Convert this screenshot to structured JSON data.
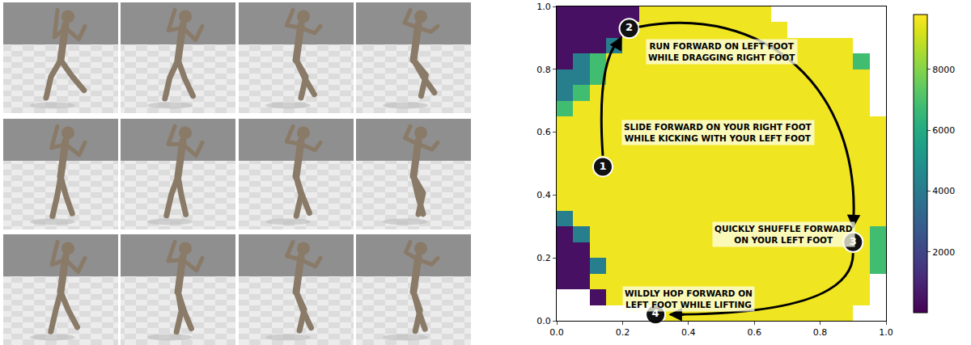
{
  "chart_data": {
    "type": "heatmap",
    "x": [
      0.025,
      0.075,
      0.125,
      0.175,
      0.225,
      0.275,
      0.325,
      0.375,
      0.425,
      0.475,
      0.525,
      0.575,
      0.625,
      0.675,
      0.725,
      0.775,
      0.825,
      0.875,
      0.925,
      0.975
    ],
    "y": [
      0.025,
      0.075,
      0.125,
      0.175,
      0.225,
      0.275,
      0.325,
      0.375,
      0.425,
      0.475,
      0.525,
      0.575,
      0.625,
      0.675,
      0.725,
      0.775,
      0.825,
      0.875,
      0.925,
      0.975
    ],
    "cells": [
      [
        null,
        null,
        null,
        null,
        null,
        null,
        9600,
        9600,
        9600,
        9600,
        9600,
        9600,
        9600,
        9600,
        9600,
        9600,
        9600,
        9600,
        null,
        null
      ],
      [
        null,
        null,
        400,
        9600,
        9600,
        9600,
        9600,
        9600,
        9600,
        9600,
        9600,
        9600,
        9600,
        9600,
        9600,
        9600,
        9600,
        9600,
        9600,
        null
      ],
      [
        400,
        400,
        9600,
        9600,
        9600,
        9600,
        9600,
        9600,
        9600,
        9600,
        9600,
        9600,
        9600,
        9600,
        9600,
        9600,
        9600,
        9600,
        9600,
        null
      ],
      [
        400,
        400,
        4200,
        9600,
        9600,
        9600,
        9600,
        9600,
        9600,
        9600,
        9600,
        9600,
        9600,
        9600,
        9600,
        9600,
        9600,
        9600,
        9600,
        6800
      ],
      [
        400,
        400,
        9600,
        9600,
        9600,
        9600,
        9600,
        9600,
        9600,
        9600,
        9600,
        9600,
        9600,
        9600,
        9600,
        9600,
        9600,
        9600,
        9600,
        6800
      ],
      [
        400,
        4200,
        9600,
        9600,
        9600,
        9600,
        9600,
        9600,
        9600,
        9600,
        9600,
        9600,
        9600,
        9600,
        9600,
        9600,
        9600,
        9600,
        9600,
        6800
      ],
      [
        4200,
        9600,
        9600,
        9600,
        9600,
        9600,
        9600,
        9600,
        9600,
        9600,
        9600,
        9600,
        9600,
        9600,
        9600,
        9600,
        9600,
        9600,
        9600,
        9600
      ],
      [
        9600,
        9600,
        9600,
        9600,
        9600,
        9600,
        9600,
        9600,
        9600,
        9600,
        9600,
        9600,
        9600,
        9600,
        9600,
        9600,
        9600,
        9600,
        9600,
        9600
      ],
      [
        9600,
        9600,
        9600,
        9600,
        9600,
        9600,
        9600,
        9600,
        9600,
        9600,
        9600,
        9600,
        9600,
        9600,
        9600,
        9600,
        9600,
        9600,
        9600,
        9600
      ],
      [
        9600,
        9600,
        9600,
        9600,
        9600,
        9600,
        9600,
        9600,
        9600,
        9600,
        9600,
        9600,
        9600,
        9600,
        9600,
        9600,
        9600,
        9600,
        9600,
        9600
      ],
      [
        9600,
        9600,
        9600,
        9600,
        9600,
        9600,
        9600,
        9600,
        9600,
        9600,
        9600,
        9600,
        9600,
        9600,
        9600,
        9600,
        9600,
        9600,
        9600,
        9600
      ],
      [
        9600,
        9600,
        9600,
        9600,
        9600,
        9600,
        9600,
        9600,
        9600,
        9600,
        9600,
        9600,
        9600,
        9600,
        9600,
        9600,
        9600,
        9600,
        9600,
        9600
      ],
      [
        9600,
        9600,
        9600,
        9600,
        9600,
        9600,
        9600,
        9600,
        9600,
        9600,
        9600,
        9600,
        9600,
        9600,
        9600,
        9600,
        9600,
        9600,
        9600,
        9600
      ],
      [
        6800,
        9600,
        9600,
        9600,
        9600,
        9600,
        9600,
        9600,
        9600,
        9600,
        9600,
        9600,
        9600,
        9600,
        9600,
        9600,
        9600,
        9600,
        9600,
        null
      ],
      [
        4200,
        6800,
        9600,
        9600,
        9600,
        9600,
        9600,
        9600,
        9600,
        9600,
        9600,
        9600,
        9600,
        9600,
        9600,
        9600,
        9600,
        9600,
        9600,
        null
      ],
      [
        4200,
        4200,
        6800,
        9600,
        9600,
        9600,
        9600,
        9600,
        9600,
        9600,
        9600,
        9600,
        9600,
        9600,
        9600,
        9600,
        9600,
        9600,
        9600,
        null
      ],
      [
        400,
        4200,
        6800,
        9600,
        9600,
        9600,
        9600,
        9600,
        9600,
        9600,
        9600,
        9600,
        9600,
        9600,
        9600,
        9600,
        9600,
        9600,
        6800,
        null
      ],
      [
        400,
        400,
        400,
        4200,
        9600,
        9600,
        9600,
        9600,
        9600,
        9600,
        9600,
        9600,
        9600,
        9600,
        9600,
        9600,
        9600,
        9600,
        null,
        null
      ],
      [
        400,
        400,
        400,
        400,
        9600,
        9600,
        9600,
        9600,
        9600,
        9600,
        9600,
        9600,
        9600,
        9600,
        null,
        null,
        null,
        null,
        null,
        null
      ],
      [
        400,
        400,
        400,
        400,
        400,
        9600,
        9600,
        9600,
        9600,
        9600,
        9600,
        9600,
        9600,
        null,
        null,
        null,
        null,
        null,
        null,
        null
      ]
    ],
    "colorbar_range": [
      0,
      9800
    ],
    "colorbar_ticks": [
      2000,
      4000,
      6000,
      8000
    ],
    "xlim": [
      0,
      1
    ],
    "ylim": [
      0,
      1
    ],
    "xticks": [
      {
        "value": 0,
        "label": "0.0"
      },
      0.2,
      0.4,
      0.6,
      0.8,
      {
        "value": 1,
        "label": "1.0"
      }
    ],
    "yticks": [
      {
        "value": 0,
        "label": "0.0"
      },
      0.2,
      0.4,
      0.6,
      0.8,
      {
        "value": 1,
        "label": "1.0"
      }
    ],
    "path": [
      {
        "label": "1",
        "x": 0.14,
        "y": 0.49
      },
      {
        "label": "2",
        "x": 0.22,
        "y": 0.93
      },
      {
        "label": "3",
        "x": 0.9,
        "y": 0.25
      },
      {
        "label": "4",
        "x": 0.3,
        "y": 0.02
      }
    ],
    "annotations": [
      {
        "lines": [
          "RUN FORWARD ON LEFT FOOT",
          "WHILE DRAGGING RIGHT FOOT"
        ],
        "x": 0.5,
        "y": 0.855
      },
      {
        "lines": [
          "SLIDE FORWARD ON YOUR RIGHT FOOT",
          "WHILE KICKING WITH YOUR LEFT FOOT"
        ],
        "x": 0.49,
        "y": 0.6
      },
      {
        "lines": [
          "QUICKLY SHUFFLE FORWARD",
          "ON YOUR LEFT FOOT"
        ],
        "x": 0.69,
        "y": 0.275
      },
      {
        "lines": [
          "WILDLY HOP FORWARD ON",
          "LEFT FOOT WHILE LIFTING"
        ],
        "x": 0.4,
        "y": 0.07
      }
    ]
  }
}
